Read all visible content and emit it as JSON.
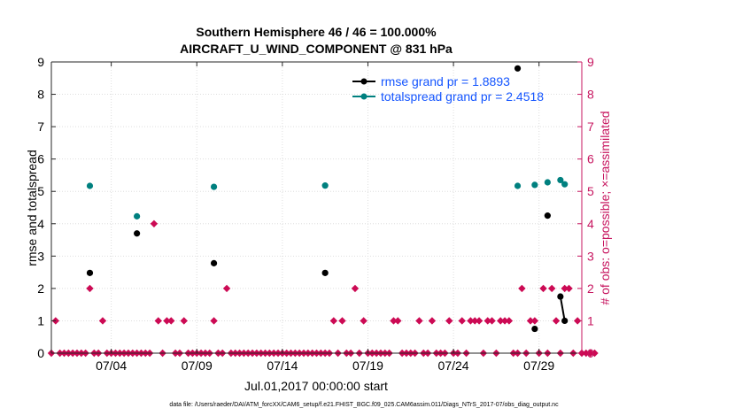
{
  "chart_data": {
    "type": "scatter",
    "title_line1": "Southern Hemisphere 46 / 46 = 100.000%",
    "title_line2": "AIRCRAFT_U_WIND_COMPONENT @ 831 hPa",
    "ylabel_left": "rmse and totalspread",
    "ylabel_right": "# of obs: o=possible; ×=assimilated",
    "xlabel": "Jul.01,2017 00:00:00 start",
    "footer": "data file: /Users/raeder/DAI/ATM_forcXX/CAM6_setup/f.e21.FHIST_BGC.f09_025.CAM6assim.011/Diags_NTrS_2017-07/obs_diag_output.nc",
    "xlim": [
      0.5,
      31.5
    ],
    "ylim_left": [
      0,
      9
    ],
    "ylim_right": [
      0,
      9
    ],
    "yticks": [
      "0",
      "1",
      "2",
      "3",
      "4",
      "5",
      "6",
      "7",
      "8",
      "9"
    ],
    "xticks": [
      {
        "x": 4,
        "label": "07/04"
      },
      {
        "x": 9,
        "label": "07/09"
      },
      {
        "x": 14,
        "label": "07/14"
      },
      {
        "x": 19,
        "label": "07/19"
      },
      {
        "x": 24,
        "label": "07/24"
      },
      {
        "x": 29,
        "label": "07/29"
      }
    ],
    "colors": {
      "rmse": "#000000",
      "spread": "#00807f",
      "obs": "#cc0a54",
      "axis_right": "#c7155f",
      "legend_text": "#1455ff"
    },
    "series": [
      {
        "name": "rmse grand pr = 1.8893",
        "key": "rmse",
        "points": [
          [
            2.75,
            2.48
          ],
          [
            5.5,
            3.7
          ],
          [
            10.0,
            2.78
          ],
          [
            16.5,
            2.48
          ],
          [
            27.75,
            8.8
          ],
          [
            28.75,
            0.75
          ],
          [
            29.5,
            4.25
          ],
          [
            30.25,
            1.75
          ],
          [
            30.5,
            1.0
          ]
        ],
        "line_segments": [
          [
            [
              30.25,
              1.75
            ],
            [
              30.5,
              1.0
            ]
          ]
        ]
      },
      {
        "name": "totalspread grand pr = 2.4518",
        "key": "spread",
        "points": [
          [
            2.75,
            5.17
          ],
          [
            5.5,
            4.23
          ],
          [
            10.0,
            5.14
          ],
          [
            16.5,
            5.18
          ],
          [
            27.75,
            5.17
          ],
          [
            28.75,
            5.2
          ],
          [
            29.5,
            5.28
          ],
          [
            30.25,
            5.35
          ],
          [
            30.5,
            5.22
          ]
        ],
        "line_segments": [
          [
            [
              30.25,
              5.35
            ],
            [
              30.5,
              5.22
            ]
          ]
        ]
      }
    ],
    "obs_count": {
      "step_start": 0.5,
      "step": 0.25,
      "values": [
        0,
        1,
        0,
        0,
        0,
        0,
        0,
        0,
        0,
        2,
        0,
        0,
        1,
        0,
        0,
        0,
        0,
        0,
        0,
        0,
        0,
        0,
        0,
        0,
        4,
        1,
        0,
        1,
        1,
        0,
        0,
        1,
        0,
        0,
        0,
        0,
        0,
        0,
        1,
        0,
        0,
        2,
        0,
        0,
        0,
        0,
        0,
        0,
        0,
        0,
        0,
        0,
        0,
        0,
        0,
        0,
        0,
        0,
        0,
        0,
        0,
        0,
        0,
        0,
        0,
        0,
        1,
        0,
        1,
        0,
        0,
        2,
        0,
        1,
        0,
        0,
        0,
        0,
        0,
        0,
        1,
        1,
        0,
        0,
        0,
        0,
        1,
        0,
        0,
        1,
        0,
        0,
        0,
        1,
        0,
        0,
        1,
        0,
        1,
        1,
        1,
        0,
        1,
        1,
        0,
        1,
        1,
        1,
        0,
        0,
        2,
        0,
        1,
        1,
        0,
        2,
        0,
        2,
        1,
        0,
        2,
        2,
        0,
        1,
        0,
        0,
        0,
        0
      ]
    }
  }
}
